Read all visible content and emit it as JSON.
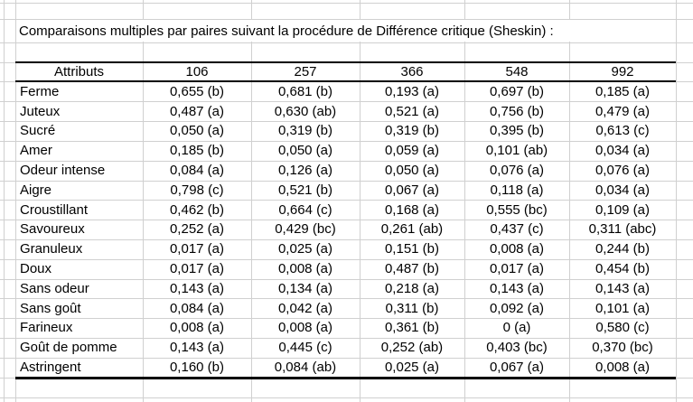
{
  "title": "Comparaisons multiples par paires suivant la procédure de Différence critique (Sheskin) :",
  "table": {
    "columns": [
      "Attributs",
      "106",
      "257",
      "366",
      "548",
      "992"
    ],
    "rows": [
      [
        "Ferme",
        "0,655 (b)",
        "0,681 (b)",
        "0,193 (a)",
        "0,697 (b)",
        "0,185 (a)"
      ],
      [
        "Juteux",
        "0,487 (a)",
        "0,630 (ab)",
        "0,521 (a)",
        "0,756 (b)",
        "0,479 (a)"
      ],
      [
        "Sucré",
        "0,050 (a)",
        "0,319 (b)",
        "0,319 (b)",
        "0,395 (b)",
        "0,613 (c)"
      ],
      [
        "Amer",
        "0,185 (b)",
        "0,050 (a)",
        "0,059 (a)",
        "0,101 (ab)",
        "0,034 (a)"
      ],
      [
        "Odeur intense",
        "0,084 (a)",
        "0,126 (a)",
        "0,050 (a)",
        "0,076 (a)",
        "0,076 (a)"
      ],
      [
        "Aigre",
        "0,798 (c)",
        "0,521 (b)",
        "0,067 (a)",
        "0,118 (a)",
        "0,034 (a)"
      ],
      [
        "Croustillant",
        "0,462 (b)",
        "0,664 (c)",
        "0,168 (a)",
        "0,555 (bc)",
        "0,109 (a)"
      ],
      [
        "Savoureux",
        "0,252 (a)",
        "0,429 (bc)",
        "0,261 (ab)",
        "0,437 (c)",
        "0,311 (abc)"
      ],
      [
        "Granuleux",
        "0,017 (a)",
        "0,025 (a)",
        "0,151 (b)",
        "0,008 (a)",
        "0,244 (b)"
      ],
      [
        "Doux",
        "0,017 (a)",
        "0,008 (a)",
        "0,487 (b)",
        "0,017 (a)",
        "0,454 (b)"
      ],
      [
        "Sans odeur",
        "0,143 (a)",
        "0,134 (a)",
        "0,218 (a)",
        "0,143 (a)",
        "0,143 (a)"
      ],
      [
        "Sans goût",
        "0,084 (a)",
        "0,042 (a)",
        "0,311 (b)",
        "0,092 (a)",
        "0,101 (a)"
      ],
      [
        "Farineux",
        "0,008 (a)",
        "0,008 (a)",
        "0,361 (b)",
        "0 (a)",
        "0,580 (c)"
      ],
      [
        "Goût de pomme",
        "0,143 (a)",
        "0,445 (c)",
        "0,252 (ab)",
        "0,403 (bc)",
        "0,370 (bc)"
      ],
      [
        "Astringent",
        "0,160 (b)",
        "0,084 (ab)",
        "0,025 (a)",
        "0,067 (a)",
        "0,008 (a)"
      ]
    ]
  },
  "colors": {
    "grid": "#d0d0d0",
    "table_border": "#000000",
    "text": "#000000",
    "background": "#ffffff"
  }
}
